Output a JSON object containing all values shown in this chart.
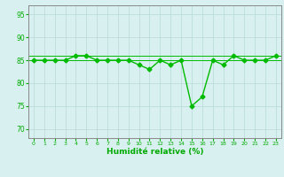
{
  "x": [
    0,
    1,
    2,
    3,
    4,
    5,
    6,
    7,
    8,
    9,
    10,
    11,
    12,
    13,
    14,
    15,
    16,
    17,
    18,
    19,
    20,
    21,
    22,
    23
  ],
  "y": [
    85,
    85,
    85,
    85,
    86,
    86,
    85,
    85,
    85,
    85,
    84,
    83,
    85,
    84,
    85,
    75,
    77,
    85,
    84,
    86,
    85,
    85,
    85,
    86
  ],
  "y_min_line": 85,
  "y_max_line": 86,
  "ylim": [
    68,
    97
  ],
  "yticks": [
    70,
    75,
    80,
    85,
    90,
    95
  ],
  "xticks": [
    0,
    1,
    2,
    3,
    4,
    5,
    6,
    7,
    8,
    9,
    10,
    11,
    12,
    13,
    14,
    15,
    16,
    17,
    18,
    19,
    20,
    21,
    22,
    23
  ],
  "xlabel": "Humidité relative (%)",
  "line_color": "#00bb00",
  "bg_color": "#d8f0f0",
  "grid_color": "#b8d8d8",
  "axis_color": "#888888",
  "text_color": "#00aa00",
  "marker": "D",
  "marker_size": 2.5,
  "linewidth": 1.0
}
